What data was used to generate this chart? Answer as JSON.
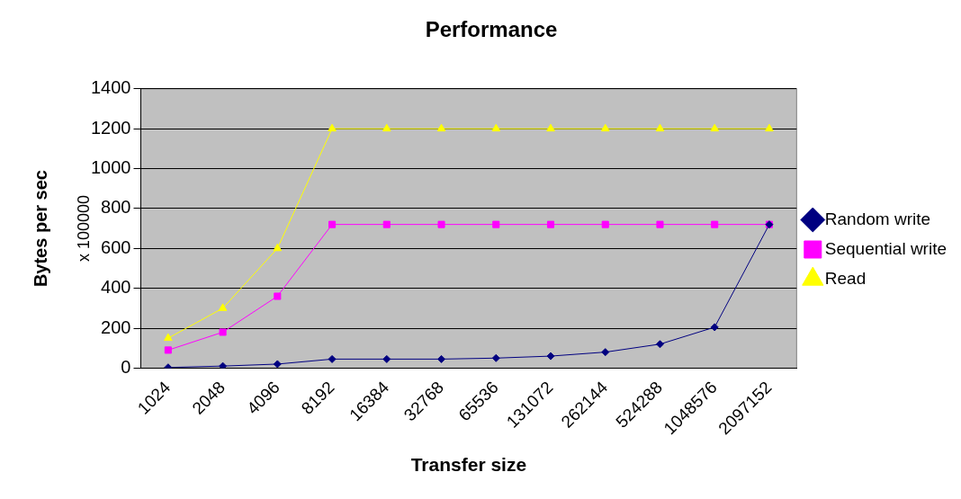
{
  "chart_data": {
    "type": "line",
    "title": "Performance",
    "xlabel": "Transfer size",
    "ylabel": "Bytes per sec",
    "annotations": [
      "x 100000"
    ],
    "categories": [
      "1024",
      "2048",
      "4096",
      "8192",
      "16384",
      "32768",
      "65536",
      "131072",
      "262144",
      "524288",
      "1048576",
      "2097152"
    ],
    "series": [
      {
        "name": "Random write",
        "color": "#000080",
        "marker": "diamond",
        "values": [
          3,
          10,
          20,
          45,
          45,
          45,
          50,
          60,
          80,
          120,
          205,
          720
        ]
      },
      {
        "name": "Sequential write",
        "color": "#ff00ff",
        "marker": "square",
        "values": [
          90,
          180,
          360,
          720,
          720,
          720,
          720,
          720,
          720,
          720,
          720,
          720
        ]
      },
      {
        "name": "Read",
        "color": "#ffff00",
        "marker": "triangle",
        "values": [
          150,
          300,
          600,
          1200,
          1200,
          1200,
          1200,
          1200,
          1200,
          1200,
          1200,
          1200
        ]
      }
    ],
    "ylim": [
      0,
      1400
    ],
    "yticks": [
      0,
      200,
      400,
      600,
      800,
      1000,
      1200,
      1400
    ],
    "grid": "y",
    "legend": "right"
  }
}
